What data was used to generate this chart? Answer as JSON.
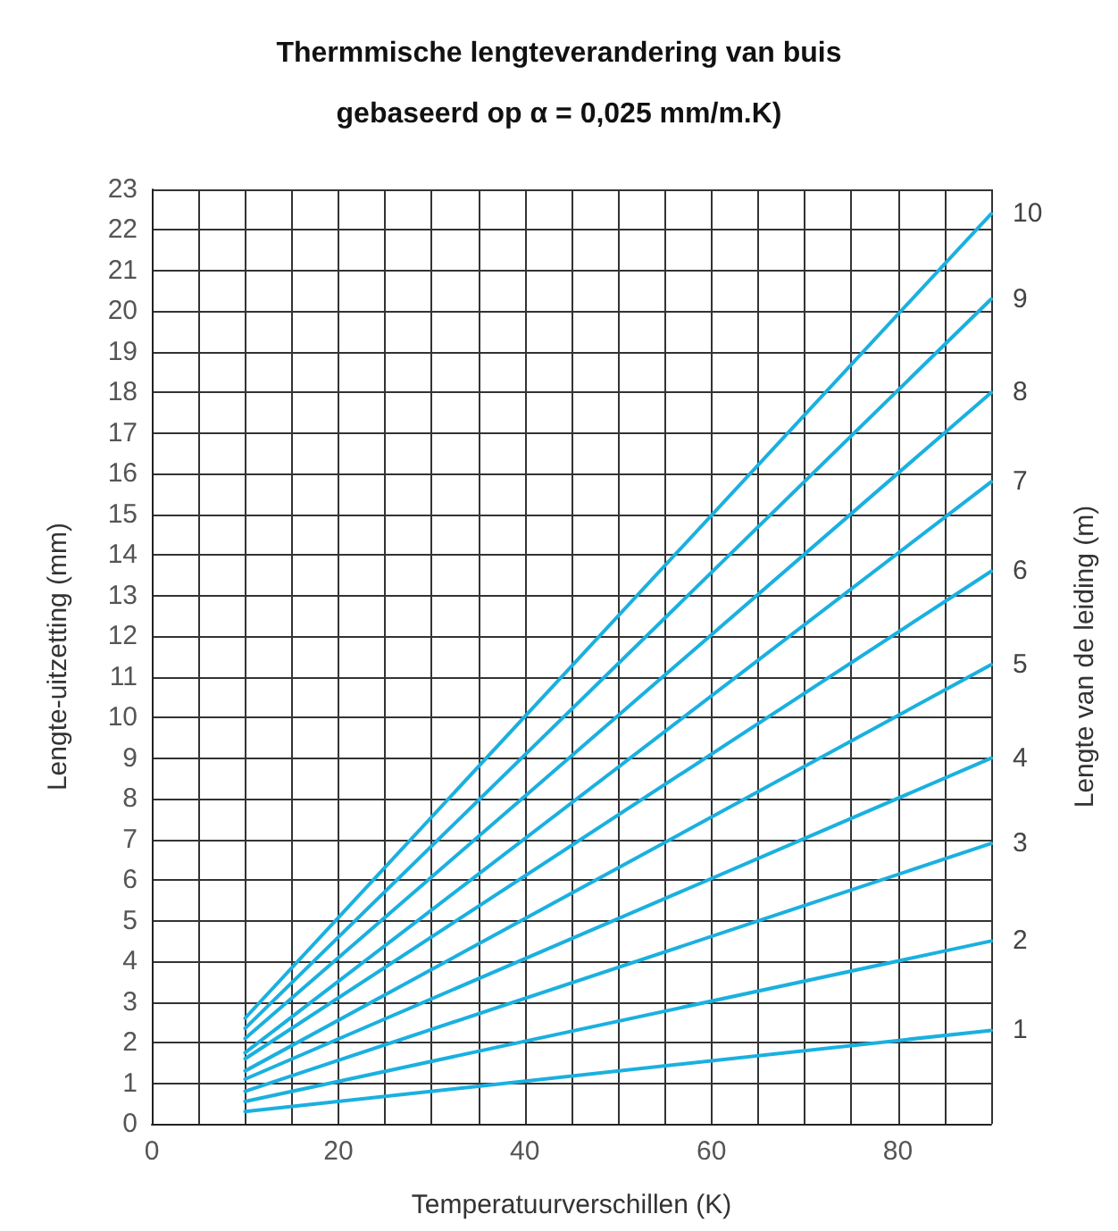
{
  "chart_data": {
    "type": "line",
    "title": "Thermmische lengteverandering van buis\ngebaseerd op α = 0,025 mm/m.K)",
    "xlabel": "Temperatuurverschillen (K)",
    "ylabel": "Lengte-uitzetting (mm)",
    "y2label": "Lengte van de leiding (m)",
    "x": [
      10,
      90
    ],
    "series": [
      {
        "name": "1",
        "color": "#1ab0e0",
        "values": [
          0.3,
          2.3
        ]
      },
      {
        "name": "2",
        "color": "#1ab0e0",
        "values": [
          0.55,
          4.5
        ]
      },
      {
        "name": "3",
        "color": "#1ab0e0",
        "values": [
          0.8,
          6.9
        ]
      },
      {
        "name": "4",
        "color": "#1ab0e0",
        "values": [
          1.1,
          9.0
        ]
      },
      {
        "name": "5",
        "color": "#1ab0e0",
        "values": [
          1.3,
          11.3
        ]
      },
      {
        "name": "6",
        "color": "#1ab0e0",
        "values": [
          1.6,
          13.6
        ]
      },
      {
        "name": "7",
        "color": "#1ab0e0",
        "values": [
          1.75,
          15.8
        ]
      },
      {
        "name": "8",
        "color": "#1ab0e0",
        "values": [
          2.1,
          18.0
        ]
      },
      {
        "name": "9",
        "color": "#1ab0e0",
        "values": [
          2.35,
          20.3
        ]
      },
      {
        "name": "10",
        "color": "#1ab0e0",
        "values": [
          2.6,
          22.4
        ]
      }
    ],
    "xlim": [
      0,
      90
    ],
    "xticks": [
      0,
      {
        "value": 5,
        "label": null
      },
      {
        "value": 10,
        "label": null
      },
      {
        "value": 15,
        "label": null
      },
      20,
      {
        "value": 25,
        "label": null
      },
      {
        "value": 30,
        "label": null
      },
      {
        "value": 35,
        "label": null
      },
      40,
      {
        "value": 45,
        "label": null
      },
      {
        "value": 50,
        "label": null
      },
      {
        "value": 55,
        "label": null
      },
      60,
      {
        "value": 65,
        "label": null
      },
      {
        "value": 70,
        "label": null
      },
      {
        "value": 75,
        "label": null
      },
      80,
      {
        "value": 85,
        "label": null
      },
      {
        "value": 90,
        "label": null
      }
    ],
    "ylim": [
      0,
      23
    ],
    "yticks": [
      0,
      1,
      2,
      3,
      4,
      5,
      6,
      7,
      8,
      9,
      10,
      11,
      12,
      13,
      14,
      15,
      16,
      17,
      18,
      19,
      20,
      21,
      22,
      23
    ],
    "grid": true,
    "legend": false,
    "marker": "none",
    "line_style": "solid"
  }
}
